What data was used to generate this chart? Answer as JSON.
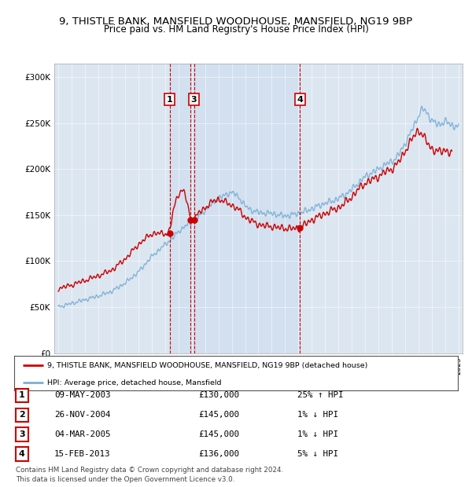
{
  "title_line1": "9, THISTLE BANK, MANSFIELD WOODHOUSE, MANSFIELD, NG19 9BP",
  "title_line2": "Price paid vs. HM Land Registry's House Price Index (HPI)",
  "background_color": "#ffffff",
  "plot_bg_color": "#dce6f1",
  "shade_color": "#c5d8ef",
  "legend_entries": [
    "9, THISTLE BANK, MANSFIELD WOODHOUSE, MANSFIELD, NG19 9BP (detached house)",
    "HPI: Average price, detached house, Mansfield"
  ],
  "legend_colors": [
    "#cc0000",
    "#7bafd4"
  ],
  "transactions": [
    {
      "num": 1,
      "date": "09-MAY-2003",
      "price": 130000,
      "hpi_diff": "25% ↑ HPI",
      "year": 2003.35
    },
    {
      "num": 2,
      "date": "26-NOV-2004",
      "price": 145000,
      "hpi_diff": "1% ↓ HPI",
      "year": 2004.9
    },
    {
      "num": 3,
      "date": "04-MAR-2005",
      "price": 145000,
      "hpi_diff": "1% ↓ HPI",
      "year": 2005.17
    },
    {
      "num": 4,
      "date": "15-FEB-2013",
      "price": 136000,
      "hpi_diff": "5% ↓ HPI",
      "year": 2013.12
    }
  ],
  "table_rows": [
    {
      "num": 1,
      "date": "09-MAY-2003",
      "price": "£130,000",
      "hpi_diff": "25% ↑ HPI"
    },
    {
      "num": 2,
      "date": "26-NOV-2004",
      "price": "£145,000",
      "hpi_diff": "1% ↓ HPI"
    },
    {
      "num": 3,
      "date": "04-MAR-2005",
      "price": "£145,000",
      "hpi_diff": "1% ↓ HPI"
    },
    {
      "num": 4,
      "date": "15-FEB-2013",
      "price": "£136,000",
      "hpi_diff": "5% ↓ HPI"
    }
  ],
  "footer": "Contains HM Land Registry data © Crown copyright and database right 2024.\nThis data is licensed under the Open Government Licence v3.0.",
  "ylim": [
    0,
    315000
  ],
  "yticks": [
    0,
    50000,
    100000,
    150000,
    200000,
    250000,
    300000
  ],
  "ytick_labels": [
    "£0",
    "£50K",
    "£100K",
    "£150K",
    "£200K",
    "£250K",
    "£300K"
  ],
  "xmin": 1994.7,
  "xmax": 2025.3,
  "hpi_knots_x": [
    1995,
    1996,
    1997,
    1998,
    1999,
    2000,
    2001,
    2002,
    2003,
    2003.5,
    2004,
    2004.5,
    2005,
    2005.5,
    2006,
    2006.5,
    2007,
    2007.5,
    2008,
    2008.5,
    2009,
    2009.5,
    2010,
    2010.5,
    2011,
    2011.5,
    2012,
    2012.5,
    2013,
    2013.5,
    2014,
    2014.5,
    2015,
    2015.5,
    2016,
    2016.5,
    2017,
    2017.5,
    2018,
    2018.5,
    2019,
    2019.5,
    2020,
    2020.5,
    2021,
    2021.5,
    2022,
    2022.3,
    2022.6,
    2023,
    2023.5,
    2024,
    2024.5,
    2025
  ],
  "hpi_knots_y": [
    50000,
    54000,
    58000,
    62000,
    67000,
    76000,
    88000,
    105000,
    118000,
    124000,
    132000,
    138000,
    142000,
    148000,
    155000,
    162000,
    168000,
    172000,
    175000,
    170000,
    160000,
    155000,
    153000,
    152000,
    152000,
    150000,
    149000,
    150000,
    152000,
    154000,
    157000,
    160000,
    163000,
    165000,
    168000,
    172000,
    178000,
    185000,
    192000,
    196000,
    200000,
    205000,
    208000,
    215000,
    228000,
    242000,
    258000,
    267000,
    262000,
    252000,
    248000,
    252000,
    248000,
    245000
  ],
  "prop_knots_x": [
    1995,
    1996,
    1997,
    1998,
    1999,
    2000,
    2001,
    2002,
    2003,
    2003.35,
    2003.6,
    2003.9,
    2004.2,
    2004.5,
    2004.9,
    2005.0,
    2005.17,
    2005.5,
    2006,
    2006.5,
    2007,
    2007.5,
    2008,
    2008.5,
    2009,
    2009.5,
    2010,
    2010.5,
    2011,
    2011.5,
    2012,
    2012.5,
    2013,
    2013.12,
    2013.5,
    2014,
    2014.5,
    2015,
    2015.5,
    2016,
    2016.5,
    2017,
    2017.5,
    2018,
    2018.5,
    2019,
    2019.5,
    2020,
    2020.5,
    2021,
    2021.5,
    2022,
    2022.5,
    2023,
    2023.5,
    2024,
    2024.5
  ],
  "prop_knots_y": [
    70000,
    74000,
    79000,
    84000,
    90000,
    102000,
    118000,
    130000,
    130000,
    130000,
    155000,
    170000,
    178000,
    175000,
    145000,
    145000,
    145000,
    152000,
    158000,
    164000,
    168000,
    164000,
    161000,
    156000,
    148000,
    143000,
    140000,
    138000,
    138000,
    136000,
    136000,
    135000,
    136000,
    136000,
    140000,
    145000,
    148000,
    152000,
    155000,
    158000,
    163000,
    170000,
    178000,
    185000,
    188000,
    192000,
    197000,
    200000,
    207000,
    220000,
    232000,
    244000,
    232000,
    222000,
    218000,
    222000,
    215000
  ]
}
